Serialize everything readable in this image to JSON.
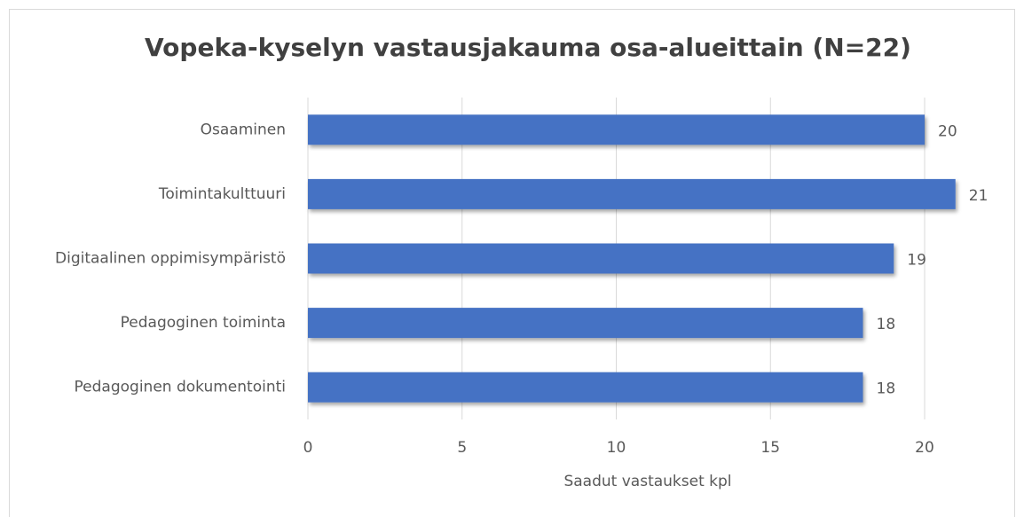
{
  "chart_data": {
    "type": "bar",
    "orientation": "horizontal",
    "title": "Vopeka-kyselyn vastausjakauma osa-alueittain (N=22)",
    "x_label": "Saadut vastaukset kpl",
    "categories": [
      "Osaaminen",
      "Toimintakulttuuri",
      "Digitaalinen oppimisympäristö",
      "Pedagoginen toiminta",
      "Pedagoginen dokumentointi"
    ],
    "values": [
      20,
      21,
      19,
      18,
      18
    ],
    "color": "#4472c4",
    "xlim": [
      0,
      22
    ],
    "xticks": [
      0,
      5,
      10,
      15,
      20
    ],
    "grid": true
  }
}
